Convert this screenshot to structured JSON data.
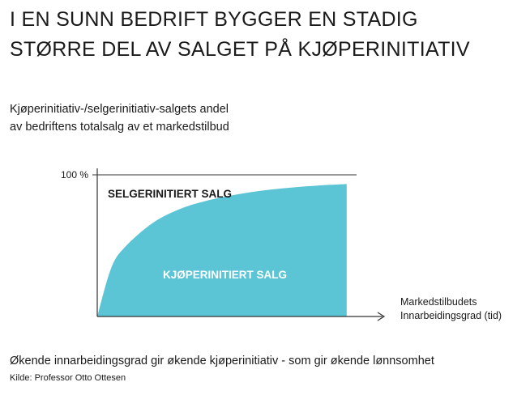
{
  "header": {
    "title_line1": "I EN SUNN BEDRIFT BYGGER EN STADIG",
    "title_line2": "STØRRE DEL AV SALGET PÅ KJØPERINITIATIV"
  },
  "chart_data": {
    "type": "area",
    "subtitle_line1": "Kjøperinitiativ-/selgerinitiativ-salgets andel",
    "subtitle_line2": "av bedriftens totalsalg av et markedstilbud",
    "ytick_label": "100 %",
    "ytick_value": 100,
    "xlabel_line1": "Markedstilbudets",
    "xlabel_line2": "Innarbeidingsgrad (tid)",
    "ylim": [
      0,
      100
    ],
    "xlim": [
      0,
      1
    ],
    "grid": false,
    "series": [
      {
        "name": "KJØPERINITIERT SALG",
        "x": [
          0,
          0.05,
          0.1,
          0.2,
          0.3,
          0.4,
          0.5,
          0.6,
          0.7,
          0.8,
          0.9
        ],
        "values": [
          0,
          34,
          49,
          66,
          76,
          82,
          86,
          89,
          91,
          92.5,
          93.5
        ]
      }
    ],
    "region_labels": {
      "upper": "SELGERINITIERT SALG",
      "lower": "KJØPERINITIERT SALG"
    },
    "colors": {
      "fill": "#5bc5d6",
      "axis": "#333333",
      "lower_label": "#ffffff",
      "upper_label": "#1a1a1a"
    }
  },
  "footer": {
    "caption": "Økende innarbeidingsgrad gir økende kjøperinitiativ - som gir økende lønnsomhet",
    "source": "Kilde: Professor Otto Ottesen"
  }
}
